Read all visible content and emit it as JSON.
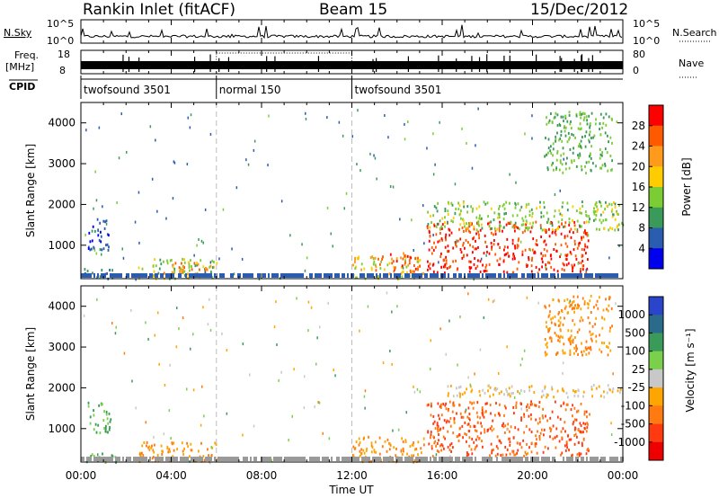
{
  "header": {
    "station": "Rankin Inlet (fitACF)",
    "beam": "Beam 15",
    "date": "15/Dec/2012"
  },
  "top_panels": {
    "nsky_label": "N.Sky",
    "nsearch_label": "N.Search",
    "nsky_ticks": [
      "10^5",
      "10^0"
    ],
    "freq_label_1": "Freq.",
    "freq_label_2": "[MHz]",
    "freq_ticks": [
      "18",
      "8"
    ],
    "nave_label": "Nave",
    "nave_ticks": [
      "80",
      "0"
    ],
    "cpid_label": "CPID",
    "cpid_segments": [
      {
        "name": "twofsound 3501",
        "start_hour": 0,
        "end_hour": 6.0
      },
      {
        "name": "normal 150",
        "start_hour": 6.0,
        "end_hour": 12.0
      },
      {
        "name": "twofsound 3501",
        "start_hour": 12.0,
        "end_hour": 24.0
      }
    ]
  },
  "x_axis": {
    "label": "Time UT",
    "ticks": [
      "00:00",
      "04:00",
      "08:00",
      "12:00",
      "16:00",
      "20:00",
      "00:00"
    ],
    "tick_hours": [
      0,
      4,
      8,
      12,
      16,
      20,
      24
    ]
  },
  "power_panel": {
    "ylabel": "Slant Range [km]",
    "yticks": [
      "4000",
      "3000",
      "2000",
      "1000"
    ],
    "colorbar_label": "Power [dB]",
    "colorbar_ticks": [
      "28",
      "24",
      "20",
      "16",
      "12",
      "8",
      "4"
    ],
    "colorbar_colors": [
      "#ff0000",
      "#ff5a00",
      "#ff9a1a",
      "#ffcc00",
      "#7ccc33",
      "#3a9a5a",
      "#2a5cb0",
      "#0000ee"
    ]
  },
  "velocity_panel": {
    "ylabel": "Slant Range [km]",
    "yticks": [
      "4000",
      "3000",
      "2000",
      "1000"
    ],
    "colorbar_label": "Velocity [m s⁻¹]",
    "colorbar_ticks": [
      "1000",
      "500",
      "100",
      "25",
      "-25",
      "-100",
      "-500",
      "-1000"
    ],
    "colorbar_colors": [
      "#2a44cc",
      "#2a6a8a",
      "#3a9a5a",
      "#7ad04a",
      "#c8c8c8",
      "#ffa500",
      "#ff7a10",
      "#ff3a10",
      "#ee0000"
    ]
  },
  "chart_data": {
    "type": "heatmap",
    "title": "Rankin Inlet (fitACF)   Beam 15   15/Dec/2012",
    "xlabel": "Time UT",
    "ylabel": "Slant Range [km]",
    "xlim_hours": [
      0,
      24
    ],
    "ylim_km": [
      180,
      4500
    ],
    "day_night_markers_hours": [
      6.0,
      12.0
    ],
    "power_regions": [
      {
        "t0": 0.1,
        "t1": 1.6,
        "r0": 200,
        "r1": 450,
        "power_db": 10
      },
      {
        "t0": 0.3,
        "t1": 1.3,
        "r0": 900,
        "r1": 1700,
        "power_db": 6
      },
      {
        "t0": 2.5,
        "t1": 6.0,
        "r0": 200,
        "r1": 700,
        "power_db": 14
      },
      {
        "t0": 3.5,
        "t1": 5.8,
        "r0": 300,
        "r1": 600,
        "power_db": 24
      },
      {
        "t0": 12.0,
        "t1": 15.2,
        "r0": 200,
        "r1": 750,
        "power_db": 18
      },
      {
        "t0": 13.0,
        "t1": 15.0,
        "r0": 350,
        "r1": 850,
        "power_db": 26
      },
      {
        "t0": 15.3,
        "t1": 22.5,
        "r0": 350,
        "r1": 1600,
        "power_db": 28
      },
      {
        "t0": 15.3,
        "t1": 24.0,
        "r0": 1400,
        "r1": 2100,
        "power_db": 14
      },
      {
        "t0": 20.5,
        "t1": 23.5,
        "r0": 2800,
        "r1": 4300,
        "power_db": 12
      }
    ],
    "velocity_regions": [
      {
        "t0": 0.1,
        "t1": 1.6,
        "r0": 200,
        "r1": 450,
        "velocity_ms": 100
      },
      {
        "t0": 0.3,
        "t1": 1.3,
        "r0": 900,
        "r1": 1700,
        "velocity_ms": 100
      },
      {
        "t0": 2.5,
        "t1": 6.0,
        "r0": 200,
        "r1": 700,
        "velocity_ms": -100
      },
      {
        "t0": 12.0,
        "t1": 15.2,
        "r0": 200,
        "r1": 850,
        "velocity_ms": -100
      },
      {
        "t0": 15.3,
        "t1": 22.5,
        "r0": 350,
        "r1": 1700,
        "velocity_ms": -500
      },
      {
        "t0": 16.0,
        "t1": 24.0,
        "r0": 1800,
        "r1": 2100,
        "velocity_ms": -25
      },
      {
        "t0": 20.5,
        "t1": 23.5,
        "r0": 2800,
        "r1": 4300,
        "velocity_ms": -100
      }
    ]
  }
}
